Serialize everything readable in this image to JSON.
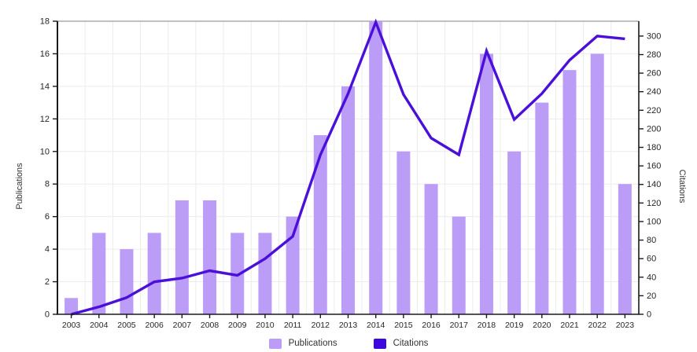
{
  "chart_data": {
    "type": "combo-bar-line",
    "categories": [
      "2003",
      "2004",
      "2005",
      "2006",
      "2007",
      "2008",
      "2009",
      "2010",
      "2011",
      "2012",
      "2013",
      "2014",
      "2015",
      "2016",
      "2017",
      "2018",
      "2019",
      "2020",
      "2021",
      "2022",
      "2023"
    ],
    "series": [
      {
        "name": "Publications",
        "type": "bar",
        "axis": "left",
        "values": [
          1,
          5,
          4,
          5,
          7,
          7,
          5,
          5,
          6,
          11,
          14,
          18,
          10,
          8,
          6,
          16,
          10,
          13,
          15,
          16,
          8
        ]
      },
      {
        "name": "Citations",
        "type": "line",
        "axis": "right",
        "values": [
          0,
          8,
          18,
          35,
          39,
          47,
          42,
          60,
          84,
          172,
          238,
          315,
          237,
          190,
          172,
          284,
          210,
          238,
          274,
          300,
          297
        ]
      }
    ],
    "left_axis": {
      "label": "Publications",
      "min": 0,
      "max": 18,
      "ticks": [
        0,
        2,
        4,
        6,
        8,
        10,
        12,
        14,
        16,
        18
      ]
    },
    "right_axis": {
      "label": "Citations",
      "min": 0,
      "max": 316,
      "ticks": [
        0,
        20,
        40,
        60,
        80,
        100,
        120,
        140,
        160,
        180,
        200,
        220,
        240,
        260,
        280,
        300
      ]
    },
    "legend": [
      {
        "label": "Publications",
        "color": "#bb9df8"
      },
      {
        "label": "Citations",
        "color": "#3d07e0"
      }
    ],
    "legend_position": "bottom",
    "grid": "on",
    "colors": {
      "bar": "#bb9df8",
      "line": "#4a0fd8",
      "grid": "#ececec",
      "axis": "#1a1a1a",
      "top_border": "#9a9a9a",
      "tick_text": "#262626"
    }
  }
}
